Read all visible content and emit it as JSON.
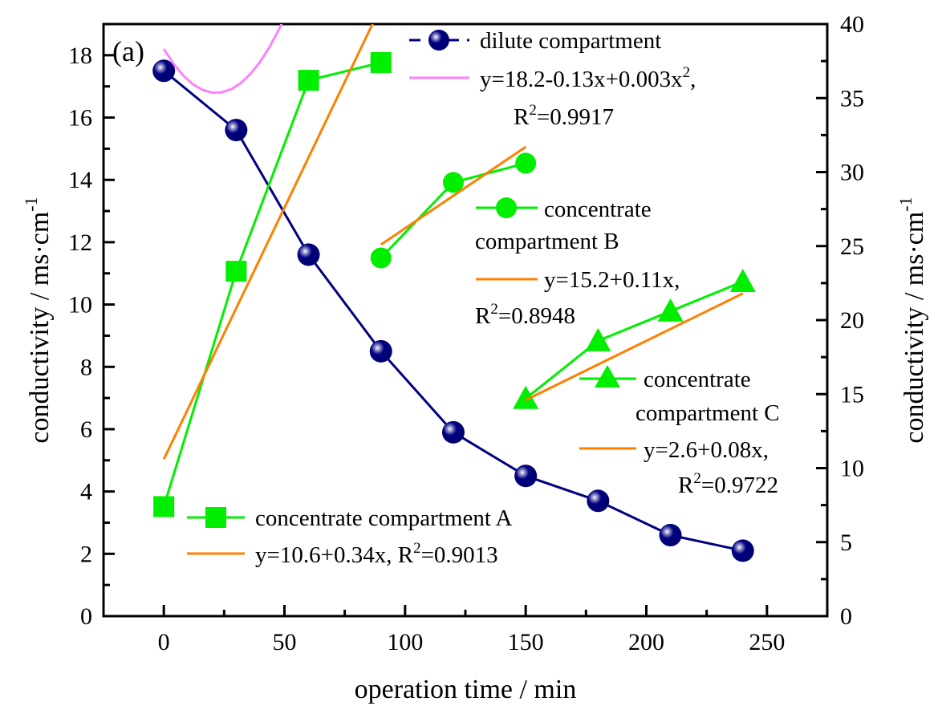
{
  "chart_data": {
    "type": "line",
    "panel_label": "(a)",
    "xlabel": "operation time / min",
    "ylabel_left": "conductivity / ms·cm",
    "ylabel_right": "conductivity / ms·cm",
    "ylabel_superscript": "-1",
    "xlim": [
      -25,
      275
    ],
    "ylim_left": [
      0,
      19
    ],
    "ylim_right": [
      0,
      40
    ],
    "x_ticks": [
      0,
      50,
      100,
      150,
      200,
      250
    ],
    "y_left_ticks": [
      0,
      2,
      4,
      6,
      8,
      10,
      12,
      14,
      16,
      18
    ],
    "y_right_ticks": [
      0,
      5,
      10,
      15,
      20,
      25,
      30,
      35,
      40
    ],
    "grid": false,
    "colors": {
      "dilute": "#000080",
      "quad_fit": "#ff80ff",
      "concentrate": "#00ee00",
      "linear_fit": "#ff7f00"
    },
    "series": [
      {
        "name": "dilute compartment",
        "axis": "left",
        "marker": "sphere",
        "x": [
          0,
          30,
          60,
          90,
          120,
          150,
          180,
          210,
          240
        ],
        "y": [
          17.5,
          15.6,
          11.6,
          8.5,
          5.9,
          4.5,
          3.7,
          2.6,
          2.1
        ]
      },
      {
        "name": "concentrate compartment A",
        "axis": "right",
        "marker": "square",
        "x": [
          0,
          30,
          60,
          90
        ],
        "y": [
          7.4,
          23.3,
          36.2,
          37.4
        ]
      },
      {
        "name": "concentrate compartment B",
        "axis": "right",
        "marker": "circle",
        "x": [
          90,
          120,
          150
        ],
        "y": [
          24.2,
          29.3,
          30.6
        ]
      },
      {
        "name": "concentrate compartment C",
        "axis": "right",
        "marker": "triangle",
        "x": [
          150,
          180,
          210,
          240
        ],
        "y": [
          14.7,
          18.6,
          20.6,
          22.6
        ]
      }
    ],
    "fits": [
      {
        "name": "dilute fit",
        "axis": "left",
        "type": "quadratic",
        "coef": [
          18.2,
          -0.13,
          0.003
        ],
        "x_range": [
          0,
          240
        ],
        "equation": "y=18.2-0.13x+0.003x",
        "eq_sup": "2",
        "eq_tail": ",",
        "r2_label": "R",
        "r2_value": "=0.9917"
      },
      {
        "name": "A fit",
        "axis": "right",
        "type": "linear",
        "coef": [
          10.6,
          0.34
        ],
        "x_range": [
          0,
          90
        ],
        "equation": "y=10.6+0.34x, R",
        "r2_value": "=0.9013"
      },
      {
        "name": "B fit",
        "axis": "right",
        "type": "linear",
        "coef": [
          15.2,
          0.11
        ],
        "x_range": [
          90,
          150
        ],
        "equation": "y=15.2+0.11x,",
        "r2_label": "R",
        "r2_value": "=0.8948"
      },
      {
        "name": "C fit",
        "axis": "right",
        "type": "linear",
        "coef": [
          2.6,
          0.08
        ],
        "x_range": [
          150,
          240
        ],
        "equation": "y=2.6+0.08x,",
        "r2_label": "R",
        "r2_value": "=0.9722"
      }
    ],
    "legend": {
      "dilute_label": "dilute compartment",
      "b_label_line1": "concentrate",
      "b_label_line2": "compartment B",
      "c_label_line1": "concentrate",
      "c_label_line2": "compartment C",
      "a_label": "concentrate compartment A",
      "sup2": "2"
    }
  }
}
